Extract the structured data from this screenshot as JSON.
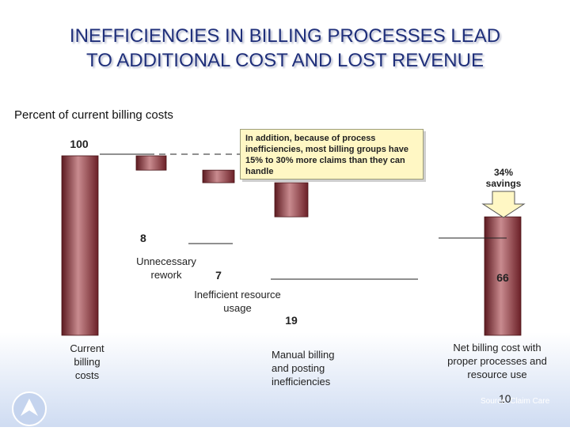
{
  "slide": {
    "title_line1": "INEFFICIENCIES IN BILLING PROCESSES LEAD",
    "title_line2": "TO ADDITIONAL COST AND LOST REVENUE",
    "subtitle": "Percent of current billing costs",
    "callout": "In addition, because of process inefficiencies, most billing groups have 15% to 30% more claims than they can handle",
    "savings_line1": "34%",
    "savings_line2": "savings",
    "source": "Source: Claim Care",
    "page_number": "10",
    "colors": {
      "title": "#1f2f7a",
      "bar": "#8a2f36",
      "callout_bg": "#fff7c4",
      "footer": "#dde6f5"
    }
  },
  "chart_data": {
    "type": "bar",
    "subtype": "waterfall",
    "title": "",
    "ylabel": "Percent of current billing costs",
    "ylim": [
      0,
      100
    ],
    "steps": [
      {
        "label_lines": [
          "Current",
          "billing",
          "costs"
        ],
        "value": 100,
        "value_label": "100",
        "kind": "total"
      },
      {
        "label_lines": [
          "Unnecessary",
          "rework"
        ],
        "value": 8,
        "value_label": "8",
        "kind": "decrease"
      },
      {
        "label_lines": [
          "Inefficient resource",
          "usage"
        ],
        "value": 7,
        "value_label": "7",
        "kind": "decrease"
      },
      {
        "label_lines": [
          "Manual billing",
          "and posting",
          "inefficiencies"
        ],
        "value": 19,
        "value_label": "19",
        "kind": "decrease"
      },
      {
        "label_lines": [
          "Net billing cost with",
          "proper processes and",
          "resource use"
        ],
        "value": 66,
        "value_label": "66",
        "kind": "total"
      }
    ]
  }
}
